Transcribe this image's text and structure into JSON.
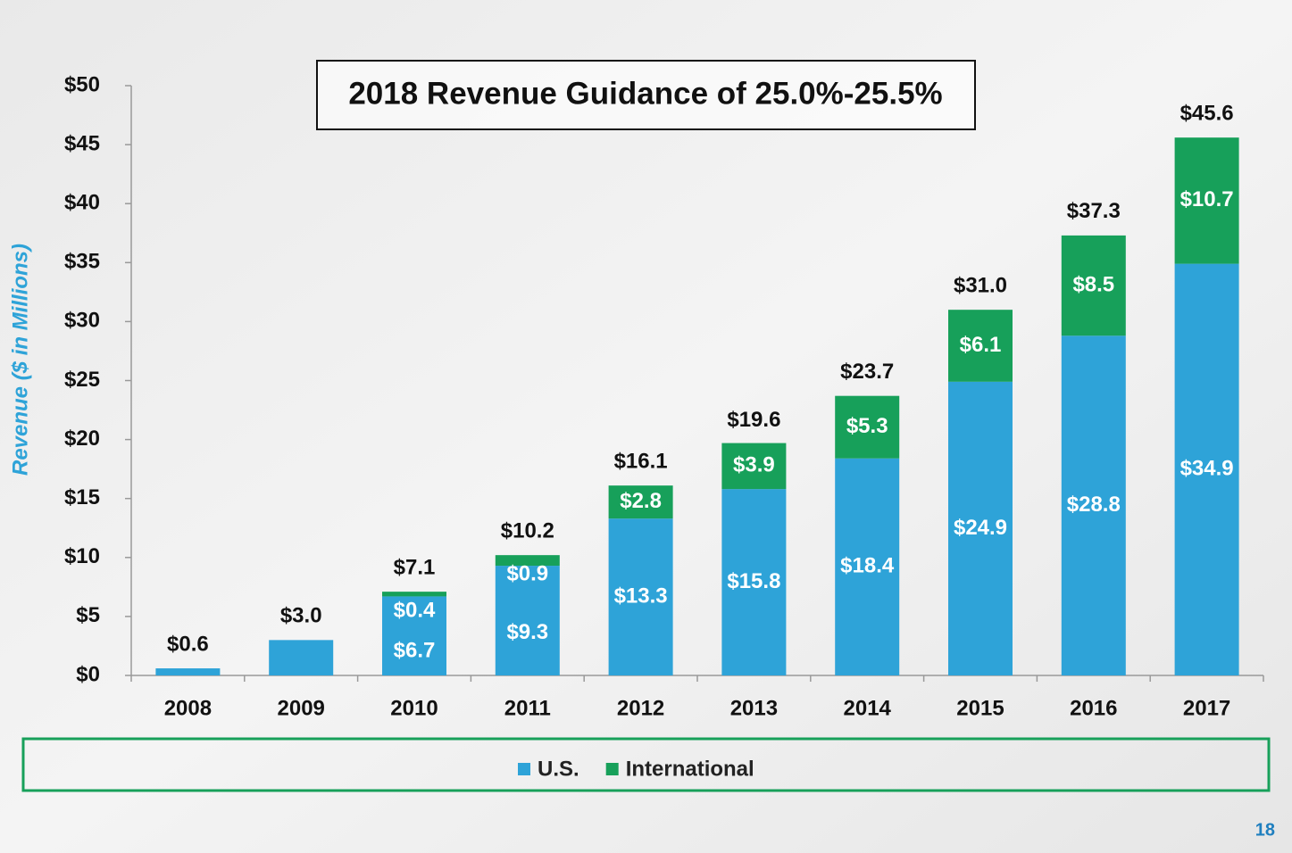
{
  "chart_data": {
    "type": "stacked_bar",
    "title": "2018 Revenue Guidance of 25.0%-25.5%",
    "ylabel": "Revenue  ($ in Millions)",
    "page_number": "18",
    "categories": [
      "2008",
      "2009",
      "2010",
      "2011",
      "2012",
      "2013",
      "2014",
      "2015",
      "2016",
      "2017"
    ],
    "series": [
      {
        "name": "U.S.",
        "color": "#2ea3d8",
        "values": [
          0.6,
          3.0,
          6.7,
          9.3,
          13.3,
          15.8,
          18.4,
          24.9,
          28.8,
          34.9
        ],
        "value_labels": [
          null,
          null,
          "$6.7",
          "$9.3",
          "$13.3",
          "$15.8",
          "$18.4",
          "$24.9",
          "$28.8",
          "$34.9"
        ]
      },
      {
        "name": "International",
        "color": "#17a05a",
        "values": [
          null,
          null,
          0.4,
          0.9,
          2.8,
          3.9,
          5.3,
          6.1,
          8.5,
          10.7
        ],
        "value_labels": [
          null,
          null,
          "$0.4",
          "$0.9",
          "$2.8",
          "$3.9",
          "$5.3",
          "$6.1",
          "$8.5",
          "$10.7"
        ]
      }
    ],
    "totals": {
      "values": [
        0.6,
        3.0,
        7.1,
        10.2,
        16.1,
        19.6,
        23.7,
        31.0,
        37.3,
        45.6
      ],
      "value_labels": [
        "$0.6",
        "$3.0",
        "$7.1",
        "$10.2",
        "$16.1",
        "$19.6",
        "$23.7",
        "$31.0",
        "$37.3",
        "$45.6"
      ]
    },
    "ylim": [
      0,
      50
    ],
    "yticks": [
      {
        "value": 0,
        "label": "$0"
      },
      {
        "value": 5,
        "label": "$5"
      },
      {
        "value": 10,
        "label": "$10"
      },
      {
        "value": 15,
        "label": "$15"
      },
      {
        "value": 20,
        "label": "$20"
      },
      {
        "value": 25,
        "label": "$25"
      },
      {
        "value": 30,
        "label": "$30"
      },
      {
        "value": 35,
        "label": "$35"
      },
      {
        "value": 40,
        "label": "$40"
      },
      {
        "value": 45,
        "label": "$45"
      },
      {
        "value": 50,
        "label": "$50"
      }
    ],
    "grid": false,
    "legend": "bottom"
  }
}
